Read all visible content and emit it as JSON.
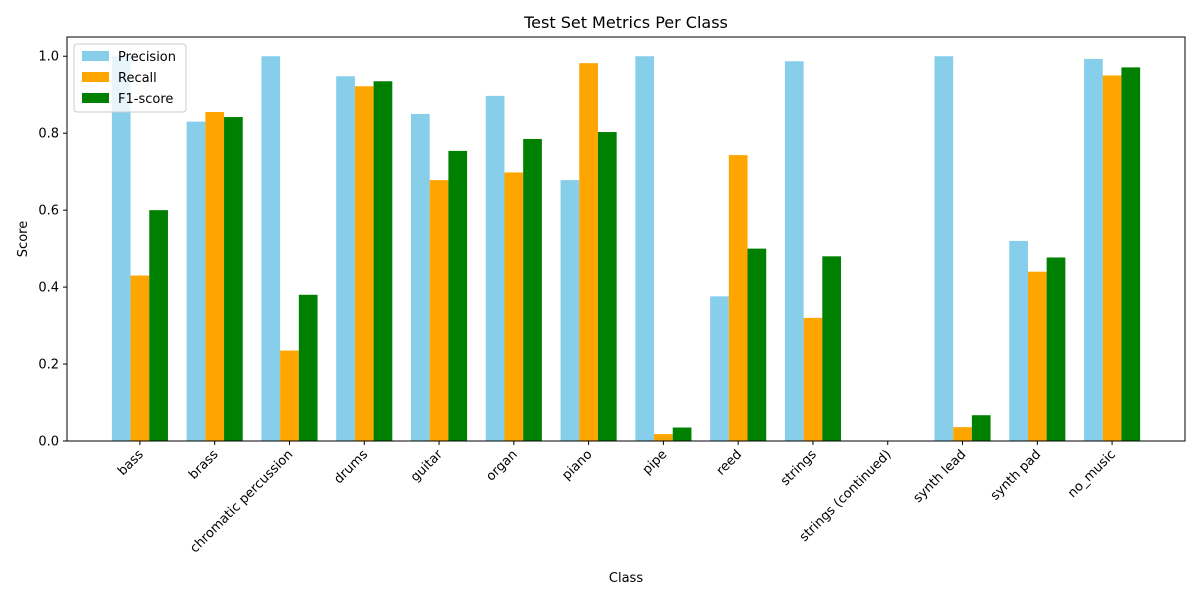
{
  "chart_data": {
    "type": "bar",
    "title": "Test Set Metrics Per Class",
    "xlabel": "Class",
    "ylabel": "Score",
    "ylim": [
      0,
      1.05
    ],
    "yticks": [
      0.0,
      0.2,
      0.4,
      0.6,
      0.8,
      1.0
    ],
    "ytick_labels": [
      "0.0",
      "0.2",
      "0.4",
      "0.6",
      "0.8",
      "1.0"
    ],
    "grid": false,
    "legend_position": "top-left",
    "categories": [
      "bass",
      "brass",
      "chromatic percussion",
      "drums",
      "guitar",
      "organ",
      "piano",
      "pipe",
      "reed",
      "strings",
      "strings (continued)",
      "synth lead",
      "synth pad",
      "no_music"
    ],
    "series": [
      {
        "name": "Precision",
        "color": "#87ceeb",
        "values": [
          1.0,
          0.83,
          1.0,
          0.948,
          0.85,
          0.897,
          0.678,
          1.0,
          0.376,
          0.987,
          0.0,
          1.0,
          0.52,
          0.993
        ]
      },
      {
        "name": "Recall",
        "color": "#ffa500",
        "values": [
          0.43,
          0.855,
          0.235,
          0.922,
          0.678,
          0.698,
          0.982,
          0.018,
          0.743,
          0.32,
          0.0,
          0.036,
          0.44,
          0.95
        ]
      },
      {
        "name": "F1-score",
        "color": "#008000",
        "values": [
          0.6,
          0.842,
          0.38,
          0.935,
          0.754,
          0.785,
          0.803,
          0.035,
          0.5,
          0.48,
          0.0,
          0.067,
          0.477,
          0.971
        ]
      }
    ]
  }
}
